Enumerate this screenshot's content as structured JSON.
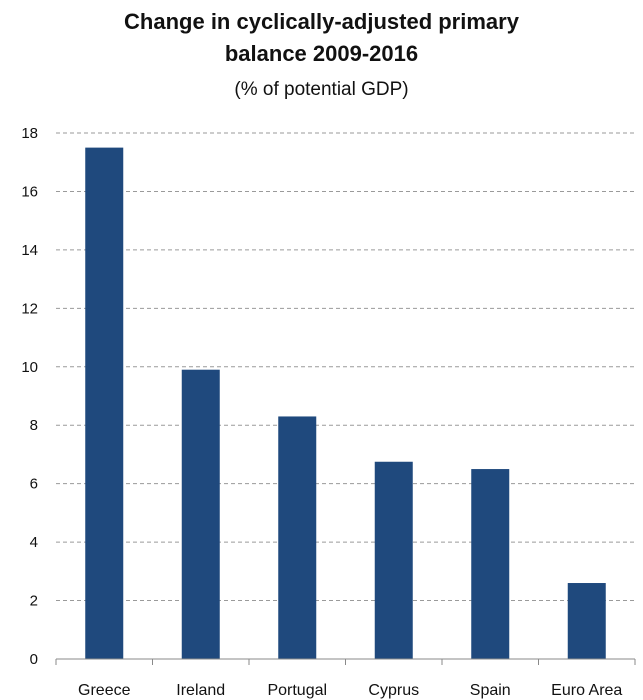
{
  "chart_data": {
    "type": "bar",
    "title_line1": "Change in cyclically-adjusted primary",
    "title_line2": "balance 2009-2016",
    "subtitle": "(% of potential GDP)",
    "categories": [
      "Greece",
      "Ireland",
      "Portugal",
      "Cyprus",
      "Spain",
      "Euro Area"
    ],
    "values": [
      17.5,
      9.9,
      8.3,
      6.75,
      6.5,
      2.6
    ],
    "ylim": [
      0,
      18
    ],
    "yticks": [
      0,
      2,
      4,
      6,
      8,
      10,
      12,
      14,
      16,
      18
    ],
    "grid": true,
    "bar_color": "#1f497d",
    "grid_color": "#9a9a9a"
  }
}
